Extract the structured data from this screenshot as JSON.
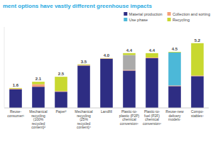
{
  "chart_data": {
    "type": "bar",
    "stacked": true,
    "title": "ment options have vastly different greenhouse impacts",
    "categories": [
      "Reuse-\nconsumer¹",
      "Mechanical\nrecycling\n(100%\nrecycled\ncontent)²",
      "Paper³",
      "Mechanical\nrecycling\n(25%\nrecycled\ncontent)⁴",
      "Landfill",
      "Plastic-to-\nplastic (P2P)\nchemical\nconversion⁵",
      "Plastic-to-\nfuel (P2F)\nchemical\nconversion⁶",
      "Reuse-new\ndelivery\nmodels⁷",
      "Compo-\nstables⁸"
    ],
    "series": [
      {
        "name": "Material production",
        "color": "#2e2d83",
        "values": [
          1.5,
          1.7,
          1.3,
          3.4,
          3.95,
          3.0,
          4.0,
          1.75,
          2.55
        ]
      },
      {
        "name": "Collection and sorting",
        "color": "#f4a07a",
        "values": [
          0.05,
          0.2,
          0.05,
          0.05,
          0.03,
          0.05,
          0.05,
          0.05,
          0.05
        ]
      },
      {
        "name": "Use phase",
        "color": "#4cb8d8",
        "values": [
          0.0,
          0.0,
          0.0,
          0.0,
          0.0,
          0.0,
          0.0,
          2.65,
          0.0
        ]
      },
      {
        "color": "#aaaaaa",
        "values": [
          0.0,
          0.0,
          0.0,
          0.0,
          0.0,
          1.2,
          0.0,
          0.0,
          0.0
        ]
      },
      {
        "name": "Recycling",
        "color": "#c8d830",
        "values": [
          0.05,
          0.2,
          1.15,
          0.05,
          0.02,
          0.15,
          0.35,
          0.05,
          2.6
        ]
      }
    ],
    "totals": [
      1.6,
      2.1,
      2.5,
      3.5,
      4.0,
      4.4,
      4.4,
      4.5,
      5.2
    ],
    "total_labels": [
      "1.6",
      "2.1",
      "2.5",
      "3.5",
      "4.0",
      "4.4",
      "4.4",
      "4.5",
      "5.2"
    ],
    "ylim": [
      0,
      6.5
    ],
    "yticks": [],
    "tick_labels": "x",
    "grid": false,
    "legend": "upper-right"
  }
}
